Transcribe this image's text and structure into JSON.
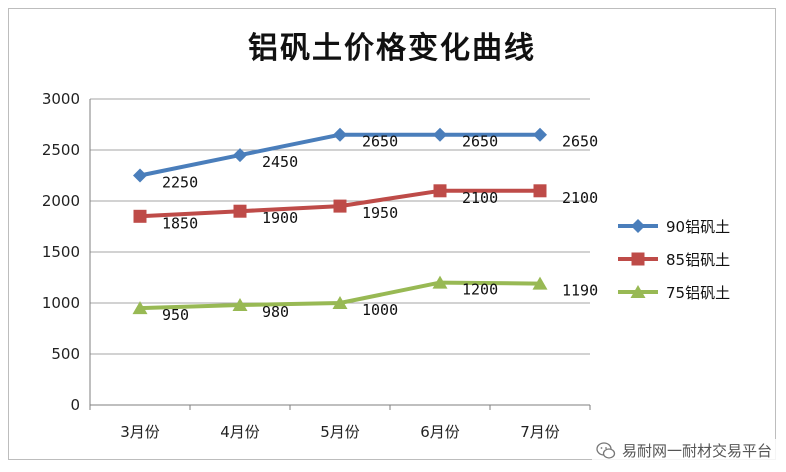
{
  "chart_data": {
    "type": "line",
    "title": "铝矾土价格变化曲线",
    "categories": [
      "3月份",
      "4月份",
      "5月份",
      "6月份",
      "7月份"
    ],
    "ylim": [
      0,
      3000
    ],
    "yticks": [
      0,
      500,
      1000,
      1500,
      2000,
      2500,
      3000
    ],
    "grid": true,
    "legend_position": "right",
    "series": [
      {
        "name": "90铝矾土",
        "values": [
          2250,
          2450,
          2650,
          2650,
          2650
        ],
        "color": "#4a7ebb",
        "marker": "diamond"
      },
      {
        "name": "85铝矾土",
        "values": [
          1850,
          1900,
          1950,
          2100,
          2100
        ],
        "color": "#be4b48",
        "marker": "square"
      },
      {
        "name": "75铝矾土",
        "values": [
          950,
          980,
          1000,
          1200,
          1190
        ],
        "color": "#98b954",
        "marker": "triangle"
      }
    ]
  },
  "watermark": {
    "text": "易耐网一耐材交易平台",
    "icon": "wechat-icon"
  }
}
